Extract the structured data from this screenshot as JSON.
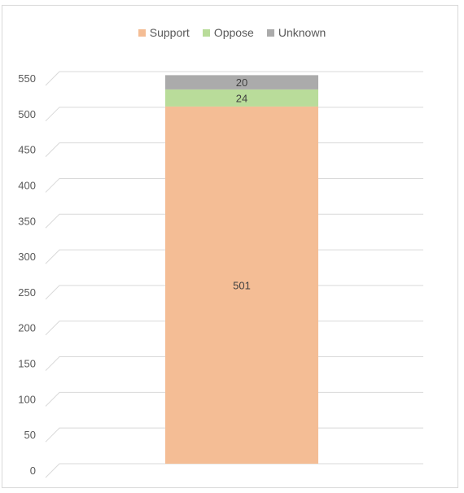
{
  "chart_data": {
    "type": "bar",
    "stacked": true,
    "categories": [
      ""
    ],
    "series": [
      {
        "name": "Support",
        "values": [
          501
        ],
        "color": "#f4bd95"
      },
      {
        "name": "Oppose",
        "values": [
          24
        ],
        "color": "#b9dc9a"
      },
      {
        "name": "Unknown",
        "values": [
          20
        ],
        "color": "#ababab"
      }
    ],
    "ylim": [
      0,
      550
    ],
    "yticks": [
      0,
      50,
      100,
      150,
      200,
      250,
      300,
      350,
      400,
      450,
      500,
      550
    ],
    "grid": true,
    "legend_position": "top",
    "title": "",
    "xlabel": "",
    "ylabel": ""
  }
}
